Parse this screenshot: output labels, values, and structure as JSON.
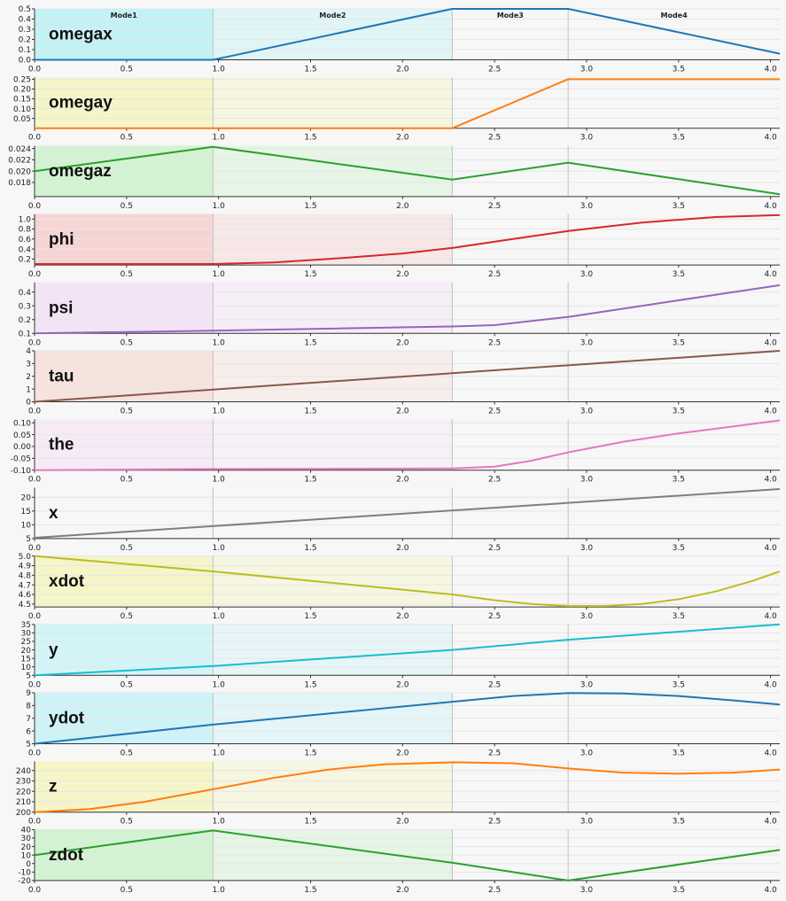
{
  "chart_data": {
    "type": "line",
    "x_range": [
      0,
      4.05
    ],
    "x_ticks": [
      "0.0",
      "0.5",
      "1.0",
      "1.5",
      "2.0",
      "2.5",
      "3.0",
      "3.5",
      "4.0"
    ],
    "mode_boundaries": [
      0.97,
      2.27,
      2.9
    ],
    "modes": [
      "Mode1",
      "Mode2",
      "Mode3",
      "Mode4"
    ],
    "panels": [
      {
        "name": "omegax",
        "color": "#1f77b4",
        "shade": "#b2f0f4",
        "ylim": [
          0,
          0.5
        ],
        "yticks": [
          "0.0",
          "0.1",
          "0.2",
          "0.3",
          "0.4",
          "0.5"
        ],
        "x": [
          0,
          0.97,
          2.27,
          2.9,
          4.05
        ],
        "y": [
          0,
          0,
          0.5,
          0.5,
          0.06
        ]
      },
      {
        "name": "omegay",
        "color": "#ff7f0e",
        "shade": "#f4f4b8",
        "ylim": [
          0,
          0.26
        ],
        "yticks": [
          "0.05",
          "0.10",
          "0.15",
          "0.20",
          "0.25"
        ],
        "x": [
          0,
          2.27,
          2.9,
          4.05
        ],
        "y": [
          0,
          0,
          0.25,
          0.25
        ]
      },
      {
        "name": "omegaz",
        "color": "#2ca02c",
        "shade": "#c6f1c6",
        "ylim": [
          0.0155,
          0.0245
        ],
        "yticks": [
          "0.018",
          "0.020",
          "0.022",
          "0.024"
        ],
        "x": [
          0,
          0.97,
          2.27,
          2.9,
          4.05
        ],
        "y": [
          0.02,
          0.0243,
          0.0185,
          0.0215,
          0.0159
        ]
      },
      {
        "name": "phi",
        "color": "#d62728",
        "shade": "#f6c8c8",
        "ylim": [
          0.08,
          1.1
        ],
        "yticks": [
          "0.2",
          "0.4",
          "0.6",
          "0.8",
          "1.0"
        ],
        "x": [
          0,
          0.97,
          1.3,
          1.6,
          2.0,
          2.27,
          2.6,
          2.9,
          3.3,
          3.7,
          4.05
        ],
        "y": [
          0.1,
          0.1,
          0.13,
          0.2,
          0.31,
          0.42,
          0.6,
          0.76,
          0.93,
          1.04,
          1.08
        ]
      },
      {
        "name": "psi",
        "color": "#9467bd",
        "shade": "#f1ddf4",
        "ylim": [
          0.1,
          0.47
        ],
        "yticks": [
          "0.1",
          "0.2",
          "0.3",
          "0.4"
        ],
        "x": [
          0,
          0.97,
          2.27,
          2.5,
          2.9,
          3.3,
          3.7,
          4.05
        ],
        "y": [
          0.1,
          0.12,
          0.15,
          0.16,
          0.22,
          0.3,
          0.38,
          0.45
        ]
      },
      {
        "name": "tau",
        "color": "#8c564b",
        "shade": "#f6dcd6",
        "ylim": [
          0,
          4
        ],
        "yticks": [
          "0",
          "1",
          "2",
          "3",
          "4"
        ],
        "x": [
          0,
          4.05
        ],
        "y": [
          0,
          4
        ]
      },
      {
        "name": "the",
        "color": "#e377c2",
        "shade": "#f6e6f6",
        "ylim": [
          -0.1,
          0.115
        ],
        "yticks": [
          "-0.10",
          "-0.05",
          "0.00",
          "0.05",
          "0.10"
        ],
        "x": [
          0,
          0.97,
          2.27,
          2.5,
          2.7,
          2.9,
          3.2,
          3.5,
          3.8,
          4.05
        ],
        "y": [
          -0.1,
          -0.095,
          -0.093,
          -0.085,
          -0.06,
          -0.025,
          0.02,
          0.055,
          0.085,
          0.11
        ]
      },
      {
        "name": "x",
        "color": "#7f7f7f",
        "shade": "#f7f7f7",
        "ylim": [
          5,
          23.5
        ],
        "yticks": [
          "5",
          "10",
          "15",
          "20"
        ],
        "x": [
          0,
          4.05
        ],
        "y": [
          5.3,
          23
        ]
      },
      {
        "name": "xdot",
        "color": "#bcbd22",
        "shade": "#f4f4b8",
        "ylim": [
          4.47,
          5.0
        ],
        "yticks": [
          "4.5",
          "4.6",
          "4.7",
          "4.8",
          "4.9",
          "5.0"
        ],
        "x": [
          0,
          0.97,
          2.27,
          2.5,
          2.7,
          2.9,
          3.1,
          3.3,
          3.5,
          3.7,
          3.9,
          4.05
        ],
        "y": [
          5.0,
          4.84,
          4.6,
          4.54,
          4.5,
          4.48,
          4.48,
          4.5,
          4.55,
          4.63,
          4.74,
          4.84
        ]
      },
      {
        "name": "y",
        "color": "#17becf",
        "shade": "#c6f4f8",
        "ylim": [
          5,
          35
        ],
        "yticks": [
          "5",
          "10",
          "15",
          "20",
          "25",
          "30",
          "35"
        ],
        "x": [
          0,
          0.97,
          2.27,
          2.9,
          4.05
        ],
        "y": [
          5,
          10.5,
          20,
          26,
          35
        ]
      },
      {
        "name": "ydot",
        "color": "#1f77b4",
        "shade": "#c0f2f6",
        "ylim": [
          5,
          9
        ],
        "yticks": [
          "5",
          "6",
          "7",
          "8",
          "9"
        ],
        "x": [
          0,
          0.97,
          2.27,
          2.6,
          2.9,
          3.2,
          3.5,
          3.8,
          4.05
        ],
        "y": [
          5,
          6.5,
          8.3,
          8.75,
          8.98,
          8.95,
          8.75,
          8.4,
          8.08
        ]
      },
      {
        "name": "z",
        "color": "#ff7f0e",
        "shade": "#f4f4b8",
        "ylim": [
          200,
          249
        ],
        "yticks": [
          "200",
          "210",
          "220",
          "230",
          "240"
        ],
        "x": [
          0,
          0.3,
          0.6,
          0.97,
          1.3,
          1.6,
          1.9,
          2.27,
          2.6,
          2.9,
          3.2,
          3.5,
          3.8,
          4.05
        ],
        "y": [
          200,
          203,
          210,
          222,
          233,
          241,
          246,
          248,
          247,
          242,
          238,
          237,
          238,
          241
        ]
      },
      {
        "name": "zdot",
        "color": "#2ca02c",
        "shade": "#c6f1c6",
        "ylim": [
          -20,
          40
        ],
        "yticks": [
          "-20",
          "-10",
          "0",
          "10",
          "20",
          "30",
          "40"
        ],
        "x": [
          0,
          0.97,
          2.27,
          2.9,
          4.05
        ],
        "y": [
          10,
          39,
          1,
          -20,
          16
        ]
      }
    ]
  }
}
